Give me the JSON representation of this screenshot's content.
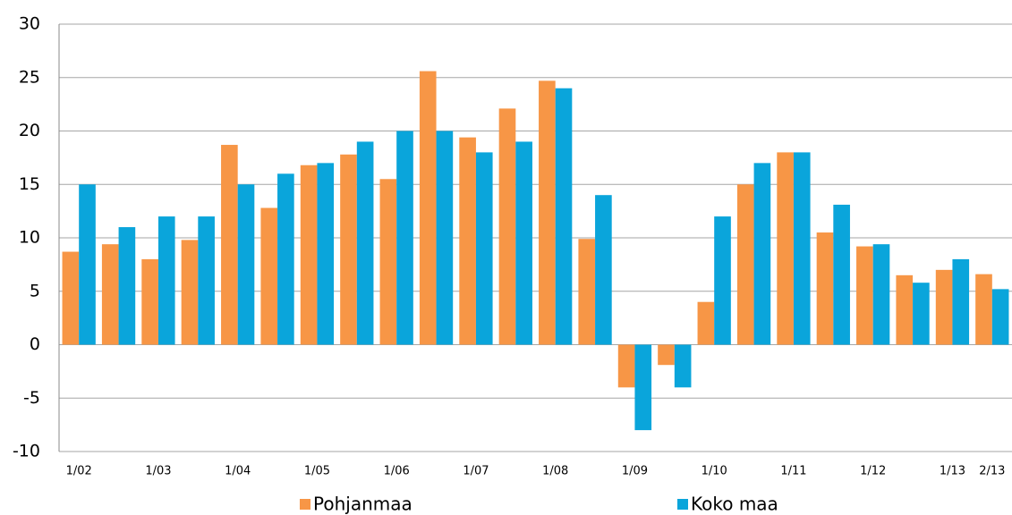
{
  "chart_data": {
    "type": "bar",
    "categories": [
      "1/02",
      null,
      "1/03",
      null,
      "1/04",
      null,
      "1/05",
      null,
      "1/06",
      null,
      "1/07",
      null,
      "1/08",
      null,
      "1/09",
      null,
      "1/10",
      null,
      "1/11",
      null,
      "1/12",
      null,
      "1/13",
      "2/13"
    ],
    "series": [
      {
        "name": "Pohjanmaa",
        "color": "#f79646",
        "values": [
          8.7,
          9.4,
          8.0,
          9.8,
          18.7,
          12.8,
          16.8,
          17.8,
          15.5,
          25.6,
          19.4,
          22.1,
          24.7,
          9.9,
          -4.0,
          -1.9,
          4.0,
          15.0,
          18.0,
          10.5,
          9.2,
          6.5,
          7.0,
          6.6
        ]
      },
      {
        "name": "Koko maa",
        "color": "#0aa5db",
        "values": [
          15,
          11,
          12,
          12,
          15,
          16,
          17,
          19,
          20,
          20,
          18,
          19,
          24,
          14,
          -8,
          -4,
          12,
          17,
          18,
          13.1,
          9.4,
          5.8,
          8,
          5.2
        ]
      }
    ],
    "ylim": [
      -10,
      30
    ],
    "yticks": [
      -10,
      -5,
      0,
      5,
      10,
      15,
      20,
      25,
      30
    ],
    "grid": true,
    "legend": "bottom"
  }
}
